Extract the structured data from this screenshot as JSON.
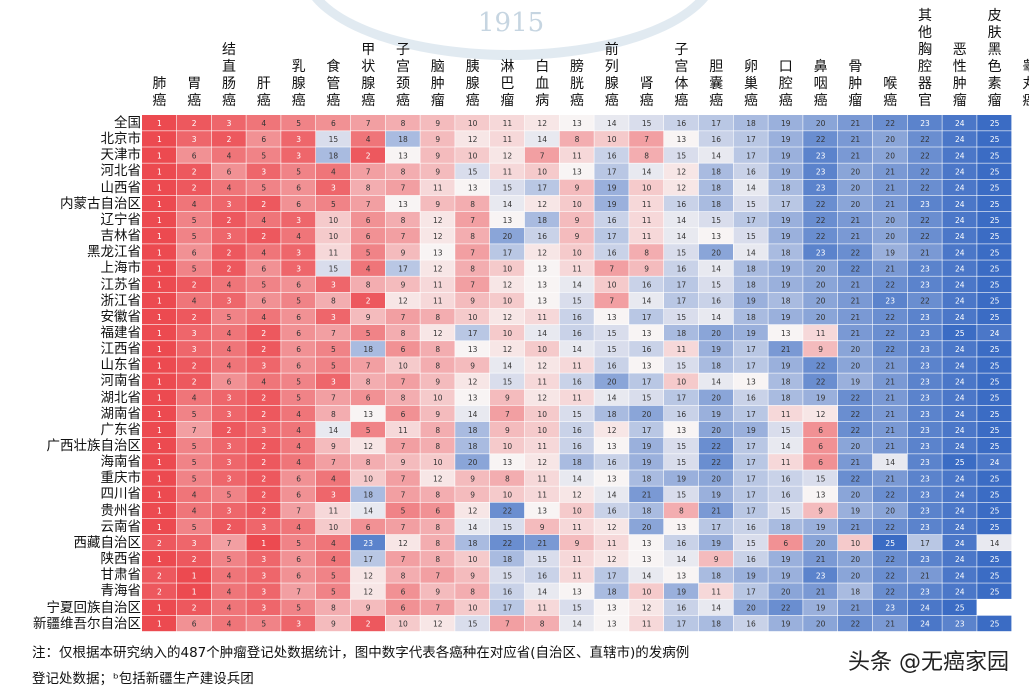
{
  "chart_data": {
    "type": "heatmap",
    "columns": [
      "肺癌",
      "胃癌",
      "结直肠癌",
      "肝癌",
      "乳腺癌",
      "食管癌",
      "甲状腺癌",
      "子宫颈癌",
      "脑肿瘤",
      "胰腺癌",
      "淋巴瘤",
      "白血病",
      "膀胱癌",
      "前列腺癌",
      "肾癌",
      "子宫体癌",
      "胆囊癌",
      "卵巢癌",
      "口腔癌",
      "鼻咽癌",
      "骨肿瘤",
      "喉癌",
      "其他胸腔器官",
      "恶性肿瘤",
      "皮肤黑色素瘤",
      "睾丸癌"
    ],
    "rows": [
      "全国",
      "北京市",
      "天津市",
      "河北省",
      "山西省",
      "内蒙古自治区",
      "辽宁省",
      "吉林省",
      "黑龙江省",
      "上海市",
      "江苏省",
      "浙江省",
      "安徽省",
      "福建省",
      "江西省",
      "山东省",
      "河南省",
      "湖北省",
      "湖南省",
      "广东省",
      "广西壮族自治区",
      "海南省",
      "重庆市",
      "四川省",
      "贵州省",
      "云南省",
      "西藏自治区",
      "陕西省",
      "甘肃省",
      "青海省",
      "宁夏回族自治区",
      "新疆维吾尔自治区"
    ],
    "row_superscripts": {
      "西藏自治区": "a",
      "新疆维吾尔自治区": "b"
    },
    "values": [
      [
        1,
        2,
        3,
        4,
        5,
        6,
        7,
        8,
        9,
        10,
        11,
        12,
        13,
        14,
        15,
        16,
        17,
        18,
        19,
        20,
        21,
        22,
        23,
        24,
        25,
        null
      ],
      [
        1,
        3,
        2,
        6,
        3,
        15,
        4,
        18,
        9,
        12,
        11,
        14,
        8,
        10,
        7,
        13,
        16,
        17,
        19,
        22,
        21,
        20,
        22,
        24,
        25,
        null
      ],
      [
        1,
        6,
        4,
        5,
        3,
        18,
        2,
        13,
        9,
        10,
        12,
        7,
        11,
        16,
        8,
        15,
        14,
        17,
        19,
        23,
        21,
        20,
        22,
        24,
        25,
        null
      ],
      [
        1,
        2,
        6,
        3,
        5,
        4,
        7,
        8,
        9,
        15,
        11,
        10,
        13,
        17,
        14,
        12,
        18,
        16,
        19,
        23,
        20,
        21,
        22,
        24,
        25,
        null
      ],
      [
        1,
        2,
        4,
        5,
        6,
        3,
        8,
        7,
        11,
        13,
        15,
        17,
        9,
        19,
        10,
        12,
        18,
        14,
        18,
        23,
        20,
        21,
        22,
        24,
        25,
        null
      ],
      [
        1,
        4,
        3,
        2,
        6,
        5,
        7,
        13,
        9,
        8,
        14,
        12,
        10,
        19,
        11,
        16,
        18,
        15,
        17,
        22,
        20,
        21,
        23,
        24,
        25,
        null
      ],
      [
        1,
        5,
        2,
        4,
        3,
        10,
        6,
        8,
        12,
        7,
        13,
        18,
        9,
        16,
        11,
        14,
        15,
        17,
        19,
        22,
        21,
        20,
        22,
        24,
        25,
        null
      ],
      [
        1,
        5,
        3,
        2,
        4,
        10,
        6,
        7,
        12,
        8,
        20,
        16,
        9,
        17,
        11,
        14,
        13,
        15,
        19,
        22,
        21,
        20,
        22,
        24,
        25,
        null
      ],
      [
        1,
        6,
        2,
        4,
        3,
        11,
        5,
        9,
        13,
        7,
        17,
        12,
        10,
        16,
        8,
        15,
        20,
        14,
        18,
        23,
        22,
        19,
        21,
        24,
        25,
        null
      ],
      [
        1,
        5,
        2,
        6,
        3,
        15,
        4,
        17,
        12,
        8,
        10,
        13,
        11,
        7,
        9,
        16,
        14,
        18,
        19,
        20,
        22,
        21,
        23,
        24,
        25,
        null
      ],
      [
        1,
        2,
        4,
        5,
        6,
        3,
        8,
        9,
        11,
        7,
        12,
        13,
        14,
        10,
        16,
        17,
        15,
        18,
        19,
        20,
        21,
        22,
        23,
        24,
        25,
        null
      ],
      [
        1,
        4,
        3,
        6,
        5,
        8,
        2,
        12,
        11,
        9,
        10,
        13,
        15,
        7,
        14,
        17,
        16,
        19,
        18,
        20,
        21,
        23,
        22,
        24,
        25,
        null
      ],
      [
        1,
        2,
        5,
        4,
        6,
        3,
        9,
        7,
        8,
        10,
        12,
        11,
        16,
        13,
        17,
        15,
        14,
        18,
        19,
        20,
        21,
        22,
        23,
        24,
        25,
        null
      ],
      [
        1,
        3,
        4,
        2,
        6,
        7,
        5,
        8,
        12,
        17,
        10,
        14,
        16,
        15,
        13,
        18,
        20,
        19,
        13,
        11,
        21,
        22,
        23,
        25,
        24,
        null
      ],
      [
        1,
        3,
        4,
        2,
        6,
        5,
        18,
        6,
        8,
        13,
        12,
        10,
        14,
        15,
        16,
        11,
        19,
        17,
        21,
        9,
        20,
        22,
        23,
        24,
        25,
        null
      ],
      [
        1,
        2,
        4,
        3,
        6,
        5,
        7,
        10,
        8,
        9,
        14,
        12,
        11,
        16,
        13,
        15,
        18,
        17,
        19,
        22,
        20,
        21,
        23,
        24,
        25,
        null
      ],
      [
        1,
        2,
        6,
        4,
        5,
        3,
        8,
        7,
        9,
        12,
        15,
        11,
        16,
        20,
        17,
        10,
        14,
        13,
        18,
        22,
        19,
        21,
        23,
        24,
        25,
        null
      ],
      [
        1,
        4,
        3,
        2,
        5,
        7,
        6,
        8,
        10,
        13,
        9,
        12,
        11,
        14,
        15,
        17,
        20,
        16,
        18,
        19,
        22,
        21,
        23,
        24,
        25,
        null
      ],
      [
        1,
        5,
        3,
        2,
        4,
        8,
        13,
        6,
        9,
        14,
        7,
        10,
        15,
        18,
        20,
        16,
        19,
        17,
        11,
        12,
        22,
        21,
        23,
        24,
        25,
        null
      ],
      [
        1,
        7,
        2,
        3,
        4,
        14,
        5,
        11,
        8,
        18,
        9,
        10,
        16,
        12,
        17,
        13,
        20,
        19,
        15,
        6,
        22,
        21,
        23,
        24,
        25,
        null
      ],
      [
        1,
        5,
        3,
        2,
        4,
        9,
        12,
        7,
        8,
        18,
        10,
        11,
        16,
        13,
        19,
        15,
        22,
        17,
        14,
        6,
        20,
        21,
        23,
        24,
        25,
        null
      ],
      [
        1,
        5,
        3,
        2,
        4,
        7,
        8,
        9,
        10,
        20,
        13,
        12,
        18,
        16,
        19,
        15,
        22,
        17,
        11,
        6,
        21,
        14,
        23,
        25,
        24,
        null
      ],
      [
        1,
        5,
        3,
        2,
        6,
        4,
        10,
        7,
        12,
        9,
        8,
        11,
        14,
        13,
        18,
        19,
        20,
        17,
        16,
        15,
        22,
        21,
        23,
        24,
        25,
        null
      ],
      [
        1,
        4,
        5,
        2,
        6,
        3,
        18,
        7,
        8,
        9,
        10,
        11,
        12,
        14,
        21,
        15,
        19,
        17,
        16,
        13,
        20,
        22,
        23,
        24,
        25,
        null
      ],
      [
        1,
        4,
        3,
        2,
        7,
        11,
        14,
        5,
        6,
        12,
        22,
        13,
        10,
        16,
        18,
        8,
        21,
        17,
        15,
        9,
        19,
        20,
        23,
        24,
        25,
        null
      ],
      [
        1,
        5,
        2,
        3,
        4,
        10,
        6,
        7,
        8,
        14,
        15,
        9,
        11,
        12,
        20,
        13,
        17,
        16,
        18,
        19,
        21,
        22,
        23,
        24,
        25,
        null
      ],
      [
        2,
        3,
        7,
        1,
        5,
        4,
        23,
        12,
        8,
        18,
        22,
        21,
        9,
        11,
        13,
        16,
        19,
        15,
        6,
        20,
        10,
        25,
        17,
        24,
        14,
        null
      ],
      [
        1,
        2,
        5,
        3,
        6,
        4,
        17,
        7,
        8,
        10,
        18,
        15,
        11,
        12,
        13,
        14,
        9,
        16,
        19,
        21,
        20,
        22,
        23,
        24,
        25,
        null
      ],
      [
        2,
        1,
        4,
        3,
        6,
        5,
        12,
        8,
        7,
        9,
        15,
        16,
        11,
        17,
        14,
        13,
        18,
        19,
        19,
        23,
        20,
        22,
        21,
        24,
        25,
        null
      ],
      [
        2,
        1,
        4,
        3,
        7,
        5,
        12,
        6,
        9,
        8,
        16,
        14,
        13,
        18,
        10,
        19,
        11,
        17,
        20,
        21,
        18,
        22,
        23,
        24,
        25,
        null
      ],
      [
        1,
        2,
        4,
        3,
        5,
        8,
        9,
        6,
        7,
        10,
        17,
        11,
        15,
        13,
        12,
        16,
        14,
        20,
        22,
        19,
        21,
        23,
        24,
        25,
        null,
        null
      ],
      [
        1,
        6,
        4,
        5,
        3,
        9,
        2,
        10,
        12,
        15,
        7,
        8,
        14,
        13,
        11,
        17,
        18,
        16,
        19,
        20,
        22,
        21,
        24,
        23,
        25,
        null
      ]
    ],
    "note_line1": "注：仅根据本研究纳入的487个肿瘤登记处数据统计，图中数字代表各癌种在对应省(自治区、直辖市)的发病例",
    "note_line2": "登记处数据；ᵇ包括新疆生产建设兵团",
    "legend": "none"
  },
  "watermark": {
    "year": "1915",
    "brand": "头条 @无癌家园"
  },
  "colors": {
    "red": "#ec4a50",
    "white": "#f8f4f4",
    "blue": "#3b6cc4"
  }
}
